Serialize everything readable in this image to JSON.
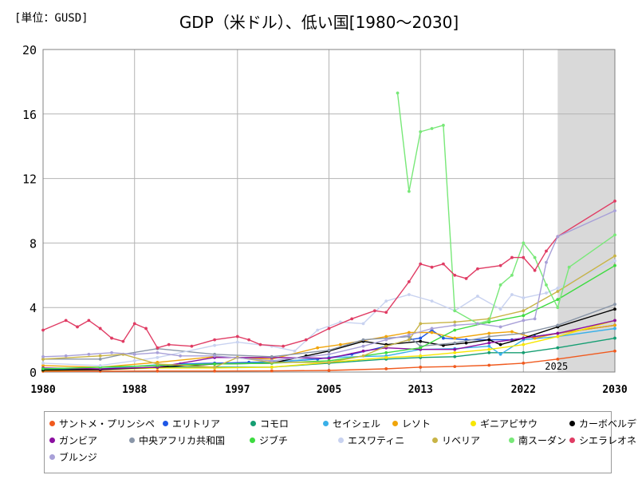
{
  "header": {
    "unit_label": "[単位：GUSD]",
    "title": "GDP（米ドル）、低い国[1980～2030]"
  },
  "chart_data": {
    "type": "line",
    "title": "GDP（米ドル）、低い国[1980～2030]",
    "unit": "[単位：GUSD]",
    "xlabel": "",
    "ylabel": "",
    "xlim": [
      1980,
      2030
    ],
    "ylim": [
      0,
      20
    ],
    "x_ticks": [
      1980,
      1988,
      1997,
      2005,
      2013,
      2022,
      2030
    ],
    "y_ticks": [
      0,
      4,
      8,
      12,
      16,
      20
    ],
    "grid": true,
    "forecast_start": 2025,
    "forecast_label": "2025",
    "legend_position": "bottom",
    "series": [
      {
        "name": "サントメ・プリンシペ",
        "color": "#f05a1e",
        "points": [
          [
            1980,
            0.05
          ],
          [
            1985,
            0.05
          ],
          [
            1990,
            0.06
          ],
          [
            1995,
            0.06
          ],
          [
            2000,
            0.07
          ],
          [
            2005,
            0.1
          ],
          [
            2010,
            0.2
          ],
          [
            2013,
            0.3
          ],
          [
            2016,
            0.34
          ],
          [
            2019,
            0.42
          ],
          [
            2022,
            0.55
          ],
          [
            2025,
            0.8
          ],
          [
            2030,
            1.3
          ]
        ]
      },
      {
        "name": "エリトリア",
        "color": "#1f57e6",
        "points": [
          [
            1992,
            0.5
          ],
          [
            1995,
            0.55
          ],
          [
            1998,
            0.6
          ],
          [
            2001,
            0.65
          ],
          [
            2004,
            0.8
          ],
          [
            2007,
            1.1
          ],
          [
            2010,
            1.6
          ],
          [
            2012,
            2.0
          ],
          [
            2013,
            2.1
          ],
          [
            2014,
            2.6
          ],
          [
            2015,
            2.1
          ],
          [
            2017,
            2.0
          ],
          [
            2019,
            2.0
          ],
          [
            2021,
            2.0
          ],
          [
            2023,
            2.2
          ],
          [
            2025,
            2.4
          ],
          [
            2030,
            2.9
          ]
        ]
      },
      {
        "name": "コモロ",
        "color": "#159e72",
        "points": [
          [
            1980,
            0.15
          ],
          [
            1985,
            0.15
          ],
          [
            1990,
            0.3
          ],
          [
            1995,
            0.3
          ],
          [
            2000,
            0.3
          ],
          [
            2005,
            0.55
          ],
          [
            2010,
            0.8
          ],
          [
            2013,
            0.9
          ],
          [
            2016,
            0.95
          ],
          [
            2019,
            1.2
          ],
          [
            2022,
            1.2
          ],
          [
            2025,
            1.5
          ],
          [
            2030,
            2.1
          ]
        ]
      },
      {
        "name": "セイシェル",
        "color": "#3ab0e8",
        "points": [
          [
            1980,
            0.15
          ],
          [
            1985,
            0.2
          ],
          [
            1990,
            0.45
          ],
          [
            1995,
            0.5
          ],
          [
            2000,
            0.6
          ],
          [
            2005,
            0.9
          ],
          [
            2010,
            1.0
          ],
          [
            2013,
            1.4
          ],
          [
            2016,
            1.45
          ],
          [
            2019,
            1.6
          ],
          [
            2020,
            1.1
          ],
          [
            2022,
            2.0
          ],
          [
            2025,
            2.2
          ],
          [
            2030,
            2.7
          ]
        ]
      },
      {
        "name": "レソト",
        "color": "#f0a50a",
        "points": [
          [
            1980,
            0.4
          ],
          [
            1985,
            0.3
          ],
          [
            1990,
            0.6
          ],
          [
            1995,
            0.95
          ],
          [
            2000,
            0.8
          ],
          [
            2004,
            1.5
          ],
          [
            2006,
            1.7
          ],
          [
            2010,
            2.2
          ],
          [
            2012,
            2.45
          ],
          [
            2014,
            2.45
          ],
          [
            2016,
            2.1
          ],
          [
            2019,
            2.4
          ],
          [
            2021,
            2.5
          ],
          [
            2023,
            2.1
          ],
          [
            2025,
            2.4
          ],
          [
            2030,
            2.9
          ]
        ]
      },
      {
        "name": "ギニアビサウ",
        "color": "#f7e600",
        "points": [
          [
            1980,
            0.1
          ],
          [
            1985,
            0.15
          ],
          [
            1990,
            0.25
          ],
          [
            1995,
            0.25
          ],
          [
            2000,
            0.3
          ],
          [
            2005,
            0.6
          ],
          [
            2010,
            0.9
          ],
          [
            2013,
            1.0
          ],
          [
            2016,
            1.2
          ],
          [
            2019,
            1.4
          ],
          [
            2022,
            1.7
          ],
          [
            2025,
            2.2
          ],
          [
            2030,
            3.2
          ]
        ]
      },
      {
        "name": "カーボベルデ",
        "color": "#000000",
        "points": [
          [
            1980,
            0.12
          ],
          [
            1985,
            0.15
          ],
          [
            1990,
            0.3
          ],
          [
            1995,
            0.5
          ],
          [
            2000,
            0.55
          ],
          [
            2003,
            1.0
          ],
          [
            2005,
            1.3
          ],
          [
            2008,
            1.9
          ],
          [
            2010,
            1.7
          ],
          [
            2013,
            1.9
          ],
          [
            2015,
            1.65
          ],
          [
            2017,
            1.8
          ],
          [
            2019,
            2.0
          ],
          [
            2020,
            1.7
          ],
          [
            2022,
            2.1
          ],
          [
            2025,
            2.8
          ],
          [
            2030,
            3.9
          ]
        ]
      },
      {
        "name": "ガンビア",
        "color": "#8b0fa0",
        "points": [
          [
            1980,
            0.25
          ],
          [
            1985,
            0.2
          ],
          [
            1990,
            0.3
          ],
          [
            1995,
            0.9
          ],
          [
            2000,
            0.9
          ],
          [
            2005,
            0.85
          ],
          [
            2008,
            1.3
          ],
          [
            2010,
            1.5
          ],
          [
            2013,
            1.4
          ],
          [
            2016,
            1.4
          ],
          [
            2019,
            1.8
          ],
          [
            2022,
            2.1
          ],
          [
            2025,
            2.4
          ],
          [
            2030,
            3.2
          ]
        ]
      },
      {
        "name": "中央アフリカ共和国",
        "color": "#8a96a8",
        "points": [
          [
            1980,
            0.8
          ],
          [
            1985,
            0.8
          ],
          [
            1987,
            1.1
          ],
          [
            1990,
            1.45
          ],
          [
            1995,
            1.1
          ],
          [
            2000,
            0.95
          ],
          [
            2005,
            1.35
          ],
          [
            2008,
            2.0
          ],
          [
            2012,
            2.2
          ],
          [
            2013,
            1.6
          ],
          [
            2016,
            1.8
          ],
          [
            2019,
            2.2
          ],
          [
            2022,
            2.4
          ],
          [
            2025,
            2.9
          ],
          [
            2030,
            4.2
          ]
        ]
      },
      {
        "name": "ジブチ",
        "color": "#3ddb40",
        "points": [
          [
            1980,
            0.2
          ],
          [
            1985,
            0.3
          ],
          [
            1990,
            0.4
          ],
          [
            1995,
            0.5
          ],
          [
            2000,
            0.55
          ],
          [
            2005,
            0.7
          ],
          [
            2010,
            1.2
          ],
          [
            2013,
            1.5
          ],
          [
            2016,
            2.6
          ],
          [
            2019,
            3.1
          ],
          [
            2022,
            3.5
          ],
          [
            2025,
            4.5
          ],
          [
            2030,
            6.6
          ]
        ]
      },
      {
        "name": "エスワティニ",
        "color": "#c8d2f0",
        "points": [
          [
            1980,
            0.55
          ],
          [
            1985,
            0.4
          ],
          [
            1988,
            0.7
          ],
          [
            1990,
            0.9
          ],
          [
            1995,
            1.65
          ],
          [
            1997,
            1.85
          ],
          [
            2000,
            1.6
          ],
          [
            2002,
            1.3
          ],
          [
            2004,
            2.6
          ],
          [
            2006,
            3.1
          ],
          [
            2008,
            3.0
          ],
          [
            2010,
            4.4
          ],
          [
            2012,
            4.8
          ],
          [
            2014,
            4.4
          ],
          [
            2016,
            3.8
          ],
          [
            2018,
            4.7
          ],
          [
            2020,
            3.9
          ],
          [
            2021,
            4.8
          ],
          [
            2022,
            4.6
          ],
          [
            2024,
            4.9
          ],
          [
            2025,
            5.2
          ],
          [
            2030,
            6.9
          ]
        ]
      },
      {
        "name": "リベリア",
        "color": "#c8b446",
        "points": [
          [
            1980,
            0.8
          ],
          [
            1985,
            1.0
          ],
          [
            1987,
            1.1
          ],
          [
            1990,
            0.5
          ],
          [
            1995,
            0.3
          ],
          [
            1997,
            0.9
          ],
          [
            2000,
            0.6
          ],
          [
            2005,
            0.6
          ],
          [
            2008,
            1.0
          ],
          [
            2010,
            1.6
          ],
          [
            2012,
            2.0
          ],
          [
            2013,
            3.0
          ],
          [
            2016,
            3.1
          ],
          [
            2019,
            3.3
          ],
          [
            2022,
            3.8
          ],
          [
            2025,
            5.0
          ],
          [
            2030,
            7.2
          ]
        ]
      },
      {
        "name": "南スーダン",
        "color": "#78e878",
        "points": [
          [
            2011,
            17.3
          ],
          [
            2012,
            11.2
          ],
          [
            2013,
            14.9
          ],
          [
            2014,
            15.1
          ],
          [
            2015,
            15.3
          ],
          [
            2016,
            3.8
          ],
          [
            2018,
            3.0
          ],
          [
            2019,
            3.2
          ],
          [
            2020,
            5.4
          ],
          [
            2021,
            6.0
          ],
          [
            2022,
            8.0
          ],
          [
            2023,
            7.1
          ],
          [
            2024,
            5.4
          ],
          [
            2025,
            4.0
          ],
          [
            2026,
            6.5
          ],
          [
            2030,
            8.5
          ]
        ]
      },
      {
        "name": "シエラレオネ",
        "color": "#e03c64",
        "points": [
          [
            1980,
            2.6
          ],
          [
            1982,
            3.2
          ],
          [
            1983,
            2.8
          ],
          [
            1984,
            3.2
          ],
          [
            1985,
            2.7
          ],
          [
            1986,
            2.1
          ],
          [
            1987,
            1.9
          ],
          [
            1988,
            3.0
          ],
          [
            1989,
            2.7
          ],
          [
            1990,
            1.5
          ],
          [
            1991,
            1.7
          ],
          [
            1993,
            1.6
          ],
          [
            1995,
            2.0
          ],
          [
            1997,
            2.2
          ],
          [
            1998,
            2.0
          ],
          [
            1999,
            1.7
          ],
          [
            2001,
            1.6
          ],
          [
            2003,
            2.0
          ],
          [
            2005,
            2.7
          ],
          [
            2007,
            3.3
          ],
          [
            2009,
            3.8
          ],
          [
            2010,
            3.7
          ],
          [
            2012,
            5.6
          ],
          [
            2013,
            6.7
          ],
          [
            2014,
            6.5
          ],
          [
            2015,
            6.7
          ],
          [
            2016,
            6.0
          ],
          [
            2017,
            5.8
          ],
          [
            2018,
            6.4
          ],
          [
            2020,
            6.6
          ],
          [
            2021,
            7.1
          ],
          [
            2022,
            7.1
          ],
          [
            2023,
            6.3
          ],
          [
            2024,
            7.5
          ],
          [
            2025,
            8.4
          ],
          [
            2030,
            10.6
          ]
        ]
      },
      {
        "name": "ブルンジ",
        "color": "#a8a0d8",
        "points": [
          [
            1980,
            0.95
          ],
          [
            1982,
            1.0
          ],
          [
            1984,
            1.1
          ],
          [
            1986,
            1.2
          ],
          [
            1988,
            1.1
          ],
          [
            1990,
            1.2
          ],
          [
            1992,
            1.0
          ],
          [
            1995,
            1.0
          ],
          [
            2000,
            0.7
          ],
          [
            2005,
            1.1
          ],
          [
            2008,
            1.6
          ],
          [
            2010,
            2.0
          ],
          [
            2012,
            2.3
          ],
          [
            2014,
            2.7
          ],
          [
            2016,
            2.9
          ],
          [
            2018,
            3.0
          ],
          [
            2020,
            2.8
          ],
          [
            2022,
            3.2
          ],
          [
            2023,
            3.3
          ],
          [
            2024,
            6.8
          ],
          [
            2025,
            8.4
          ],
          [
            2030,
            10.0
          ]
        ]
      }
    ]
  }
}
